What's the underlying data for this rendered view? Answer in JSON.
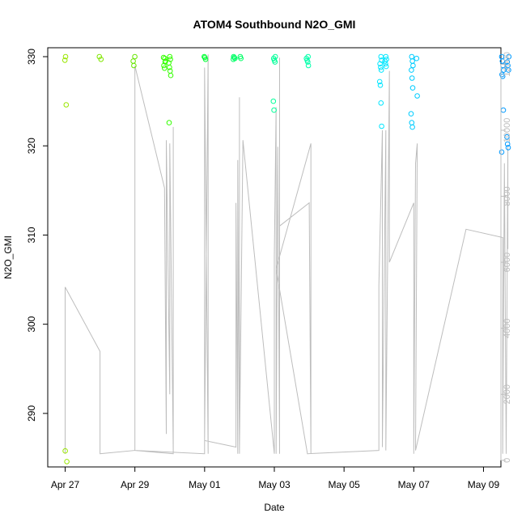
{
  "chart_data": {
    "type": "scatter",
    "title": "ATOM4 Southbound N2O_GMI",
    "xlabel": "Date",
    "ylabel": "N2O_GMI",
    "x_ticks": [
      "Apr 27",
      "Apr 29",
      "May 01",
      "May 03",
      "May 05",
      "May 07",
      "May 09"
    ],
    "y_ticks": [
      290,
      300,
      310,
      320,
      330
    ],
    "y2_ticks": [
      0,
      2000,
      4000,
      6000,
      8000,
      10000,
      12000
    ],
    "ylim": [
      284,
      331
    ],
    "y2lim": [
      -200,
      12500
    ],
    "xlim_days_from_apr27": [
      -0.5,
      12.5
    ],
    "y2_series_color": "#bdbdbd",
    "points": [
      {
        "date": "Apr 27",
        "day": 0.02,
        "values": [
          329.6,
          330.0,
          324.6,
          284.6,
          285.8
        ],
        "color": "#99e600"
      },
      {
        "date": "Apr 28",
        "day": 1.0,
        "values": [
          329.7,
          330.0
        ],
        "color": "#80e600"
      },
      {
        "date": "Apr 29",
        "day": 1.98,
        "values": [
          330.0,
          329.5,
          329.0
        ],
        "color": "#66e600"
      },
      {
        "date": "Apr 29",
        "day": 2.85,
        "values": [
          329.8,
          329.5,
          329.0,
          328.7,
          329.4,
          329.9
        ],
        "color": "#33ff00"
      },
      {
        "date": "Apr 30",
        "day": 3.0,
        "values": [
          330.0,
          329.7,
          329.3,
          328.8,
          328.4,
          327.9,
          322.6
        ],
        "color": "#33ff00"
      },
      {
        "date": "May 01",
        "day": 4.0,
        "values": [
          330.0,
          329.9,
          329.7
        ],
        "color": "#00ff33"
      },
      {
        "date": "May 01",
        "day": 4.85,
        "values": [
          330.0,
          329.9,
          329.8,
          329.7
        ],
        "color": "#00ff66"
      },
      {
        "date": "May 02",
        "day": 5.05,
        "values": [
          330.0,
          329.8
        ],
        "color": "#00ff66"
      },
      {
        "date": "May 03",
        "day": 6.0,
        "values": [
          330.0,
          329.8,
          329.6,
          329.4,
          325.0,
          324.0
        ],
        "color": "#00ff99"
      },
      {
        "date": "May 03",
        "day": 6.95,
        "values": [
          330.0,
          329.8,
          329.6,
          329.4,
          329.0
        ],
        "color": "#00ffaa"
      },
      {
        "date": "May 06",
        "day": 9.05,
        "values": [
          330.0,
          329.6,
          329.2,
          328.8,
          328.5,
          327.2,
          326.8,
          324.8,
          322.2
        ],
        "color": "#00e6ff"
      },
      {
        "date": "May 06",
        "day": 9.2,
        "values": [
          330.0,
          329.7,
          329.5,
          329.2,
          328.9
        ],
        "color": "#00e6ff"
      },
      {
        "date": "May 07",
        "day": 9.95,
        "values": [
          330.0,
          329.5,
          329.0,
          328.5,
          327.6,
          326.5,
          323.6,
          322.6,
          322.1
        ],
        "color": "#00ccff"
      },
      {
        "date": "May 07",
        "day": 10.1,
        "values": [
          329.8,
          325.6
        ],
        "color": "#00ccff"
      },
      {
        "date": "May 09",
        "day": 12.55,
        "values": [
          330.0,
          329.5,
          329.0,
          328.5,
          328.0,
          327.8,
          324.0,
          319.3
        ],
        "color": "#0099ff"
      },
      {
        "date": "May 09",
        "day": 12.7,
        "values": [
          330.0,
          329.4,
          329.0,
          328.5,
          321.0,
          320.2,
          319.8
        ],
        "color": "#0099ff"
      }
    ],
    "y2_line": [
      [
        0.0,
        200
      ],
      [
        0.0,
        5250
      ],
      [
        1.0,
        3300
      ],
      [
        1.0,
        200
      ],
      [
        2.0,
        300
      ],
      [
        2.0,
        11950
      ],
      [
        2.85,
        8250
      ],
      [
        2.9,
        800
      ],
      [
        2.9,
        9700
      ],
      [
        3.0,
        2000
      ],
      [
        3.0,
        9600
      ],
      [
        3.1,
        250
      ],
      [
        3.1,
        10100
      ],
      [
        3.1,
        200
      ],
      [
        2.0,
        300
      ],
      [
        4.0,
        200
      ],
      [
        4.0,
        11900
      ],
      [
        4.1,
        200
      ],
      [
        4.1,
        12300
      ],
      [
        4.0,
        600
      ],
      [
        4.9,
        400
      ],
      [
        4.9,
        7800
      ],
      [
        4.95,
        200
      ],
      [
        4.95,
        9100
      ],
      [
        5.0,
        200
      ],
      [
        5.0,
        11000
      ],
      [
        5.0,
        300
      ],
      [
        5.1,
        9700
      ],
      [
        6.0,
        200
      ],
      [
        6.0,
        6200
      ],
      [
        6.05,
        10700
      ],
      [
        6.05,
        200
      ],
      [
        6.1,
        9500
      ],
      [
        6.15,
        200
      ],
      [
        6.15,
        12200
      ],
      [
        6.15,
        7100
      ],
      [
        7.0,
        7800
      ],
      [
        7.05,
        200
      ],
      [
        7.05,
        9600
      ],
      [
        6.05,
        5800
      ],
      [
        6.95,
        200
      ],
      [
        9.0,
        300
      ],
      [
        9.0,
        5300
      ],
      [
        9.1,
        10000
      ],
      [
        9.1,
        400
      ],
      [
        9.2,
        10000
      ],
      [
        9.2,
        300
      ],
      [
        9.3,
        11800
      ],
      [
        9.3,
        6000
      ],
      [
        10.0,
        7800
      ],
      [
        10.0,
        200
      ],
      [
        10.05,
        9000
      ],
      [
        10.1,
        9600
      ],
      [
        10.05,
        300
      ],
      [
        11.5,
        7000
      ],
      [
        12.55,
        6750
      ],
      [
        12.55,
        200
      ],
      [
        12.6,
        9000
      ],
      [
        12.65,
        200
      ],
      [
        12.7,
        9500
      ],
      [
        12.7,
        6400
      ]
    ]
  }
}
